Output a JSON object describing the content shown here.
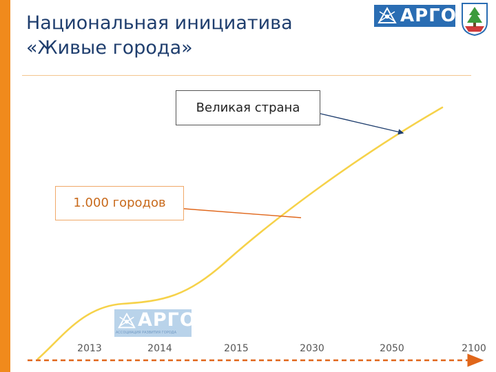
{
  "header": {
    "title_line1": "Национальная инициатива",
    "title_line2": "«Живые города»"
  },
  "logo": {
    "text": "АРГО",
    "subtitle": "АССОЦИАЦИЯ РАЗВИТИЯ ГОРОДА",
    "color": "#2a6db3"
  },
  "colors": {
    "accent_bar": "#f08a1c",
    "title": "#1f3e6e",
    "curve": "#f6d24a",
    "axis_arrow": "#e0661a",
    "callout_great_line": "#1f3e6e",
    "callout_cities_line": "#e0661a"
  },
  "callouts": {
    "great_country": "Великая страна",
    "thousand_cities": "1.000 городов"
  },
  "chart_data": {
    "type": "line",
    "categories": [
      "2013",
      "2014",
      "2015",
      "2030",
      "2050",
      "2100"
    ],
    "axis": {
      "style": "dashed arrow"
    },
    "grid": false,
    "series": [
      {
        "shape": "s-curve",
        "values": [
          0,
          0.36,
          0.47,
          0.67,
          0.9,
          1.0
        ]
      }
    ],
    "annotations": [
      {
        "text": "Великая страна",
        "at": "2050"
      },
      {
        "text": "1.000 городов",
        "at": "2030"
      }
    ]
  }
}
